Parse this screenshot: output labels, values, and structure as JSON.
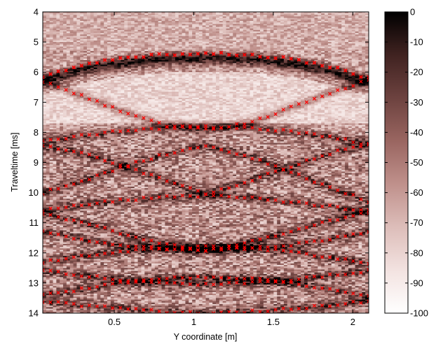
{
  "chart_data": {
    "type": "heatmap",
    "title": "",
    "xlabel": "Y coordinate [m]",
    "ylabel": "Traveltime [ms]",
    "xlim": [
      0.05,
      2.1
    ],
    "ylim": [
      4,
      14
    ],
    "y_reversed": true,
    "xticks": [
      0.5,
      1,
      1.5,
      2
    ],
    "xtick_labels": [
      "0.5",
      "1",
      "1.5",
      "2"
    ],
    "yticks": [
      4,
      5,
      6,
      7,
      8,
      9,
      10,
      11,
      12,
      13,
      14
    ],
    "ytick_labels": [
      "4",
      "5",
      "6",
      "7",
      "8",
      "9",
      "10",
      "11",
      "12",
      "13",
      "14"
    ],
    "colorbar": {
      "range": [
        -100,
        0
      ],
      "ticks": [
        0,
        -10,
        -20,
        -30,
        -40,
        -50,
        -60,
        -70,
        -80,
        -90,
        -100
      ],
      "tick_labels": [
        "0",
        "-10",
        "-20",
        "-30",
        "-40",
        "-50",
        "-60",
        "-70",
        "-80",
        "-90",
        "-100"
      ],
      "colors": [
        "#ffffff",
        "#f3e3e1",
        "#dcbcb8",
        "#bf908b",
        "#9a6661",
        "#6e4340",
        "#3f2220",
        "#000000"
      ]
    },
    "overlay_marker": {
      "symbol": "x",
      "color": "#ff0000"
    },
    "picked_events": [
      {
        "x": [
          0.05,
          0.3,
          0.55,
          0.8,
          1.08,
          1.35,
          1.6,
          1.85,
          2.1
        ],
        "y": [
          6.15,
          5.75,
          5.55,
          5.42,
          5.38,
          5.42,
          5.55,
          5.8,
          6.2
        ]
      },
      {
        "x": [
          0.05,
          0.3,
          0.55,
          0.8,
          1.08,
          1.35,
          1.6,
          1.85,
          2.1
        ],
        "y": [
          6.3,
          6.8,
          7.3,
          7.75,
          7.9,
          7.7,
          7.2,
          6.7,
          6.25
        ]
      },
      {
        "x": [
          0.05,
          0.3,
          0.55,
          0.8,
          1.08,
          1.35,
          1.6,
          1.85,
          2.1
        ],
        "y": [
          8.3,
          8.1,
          7.95,
          7.85,
          7.8,
          7.85,
          7.95,
          8.15,
          8.4
        ]
      },
      {
        "x": [
          0.05,
          0.3,
          0.55,
          0.8,
          1.08,
          1.35,
          1.6,
          1.85,
          2.1
        ],
        "y": [
          8.45,
          8.7,
          9.1,
          9.55,
          10.05,
          9.6,
          9.15,
          8.7,
          8.4
        ]
      },
      {
        "x": [
          0.05,
          0.3,
          0.55,
          0.8,
          1.08,
          1.35,
          1.6,
          1.85,
          2.1
        ],
        "y": [
          10.0,
          9.6,
          9.15,
          8.75,
          8.45,
          8.8,
          9.3,
          9.8,
          10.3
        ]
      },
      {
        "x": [
          0.05,
          0.3,
          0.55,
          0.8,
          1.08,
          1.35,
          1.6,
          1.85,
          2.1
        ],
        "y": [
          10.6,
          10.4,
          10.25,
          10.15,
          10.1,
          10.15,
          10.3,
          10.45,
          10.65
        ]
      },
      {
        "x": [
          0.05,
          0.3,
          0.55,
          0.8,
          1.08,
          1.35,
          1.6,
          1.85,
          2.1
        ],
        "y": [
          10.7,
          11.0,
          11.35,
          11.7,
          11.95,
          11.65,
          11.3,
          10.95,
          10.6
        ]
      },
      {
        "x": [
          0.05,
          0.3,
          0.55,
          0.8,
          1.08,
          1.35,
          1.6,
          1.85,
          2.1
        ],
        "y": [
          11.3,
          11.55,
          11.75,
          11.85,
          11.9,
          11.85,
          11.75,
          11.55,
          11.3
        ]
      },
      {
        "x": [
          0.05,
          0.3,
          0.55,
          0.8,
          1.08,
          1.35,
          1.6,
          1.85,
          2.1
        ],
        "y": [
          12.3,
          12.1,
          11.95,
          11.85,
          11.8,
          11.85,
          11.95,
          12.15,
          12.35
        ]
      },
      {
        "x": [
          0.05,
          0.3,
          0.55,
          0.8,
          1.08,
          1.35,
          1.6,
          1.85,
          2.1
        ],
        "y": [
          12.6,
          12.75,
          12.9,
          13.0,
          13.05,
          13.0,
          12.9,
          12.75,
          12.6
        ]
      },
      {
        "x": [
          0.05,
          0.3,
          0.55,
          0.8,
          1.08,
          1.35,
          1.6,
          1.85,
          2.1
        ],
        "y": [
          13.4,
          13.2,
          13.0,
          12.85,
          12.8,
          12.85,
          13.0,
          13.2,
          13.45
        ]
      },
      {
        "x": [
          0.05,
          0.3,
          0.55,
          0.8,
          1.08,
          1.35,
          1.6,
          1.85,
          2.1
        ],
        "y": [
          13.6,
          13.75,
          13.85,
          13.95,
          14.0,
          13.95,
          13.85,
          13.75,
          13.6
        ]
      }
    ]
  }
}
